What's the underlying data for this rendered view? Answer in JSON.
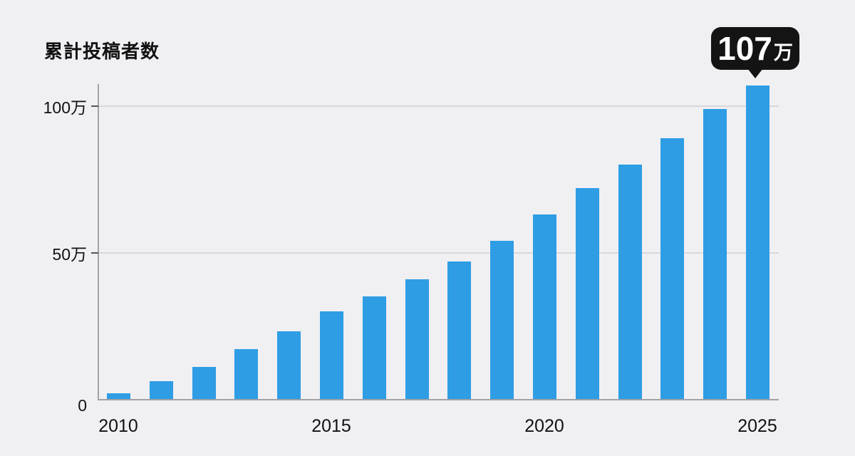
{
  "title": "累計投稿者数",
  "callout": {
    "value": "107",
    "unit": "万"
  },
  "colors": {
    "background": "#F0EFF2",
    "bar": "#2E9DE4",
    "grid": "#D8D8DC",
    "axis": "#A2A2A6",
    "tick": "#55555A",
    "text": "#111111",
    "callout_bg": "#141414",
    "callout_text": "#FFFFFF"
  },
  "chart_data": {
    "type": "bar",
    "title": "累計投稿者数",
    "unit": "万",
    "categories": [
      "2010",
      "2011",
      "2012",
      "2013",
      "2014",
      "2015",
      "2016",
      "2017",
      "2018",
      "2019",
      "2020",
      "2021",
      "2022",
      "2023",
      "2024",
      "2025"
    ],
    "values": [
      2,
      6,
      11,
      17,
      23,
      30,
      35,
      41,
      47,
      54,
      63,
      72,
      80,
      89,
      99,
      107
    ],
    "annotation": {
      "category": "2025",
      "label": "107万"
    },
    "xlabel": "",
    "ylabel": "",
    "x_tick_labels": [
      "2010",
      "2015",
      "2020",
      "2025"
    ],
    "y_ticks": [
      {
        "value": 0,
        "label": "0"
      },
      {
        "value": 50,
        "label": "50万"
      },
      {
        "value": 100,
        "label": "100万"
      }
    ],
    "ylim": [
      0,
      110
    ],
    "grid": "horizontal",
    "legend": "none"
  }
}
